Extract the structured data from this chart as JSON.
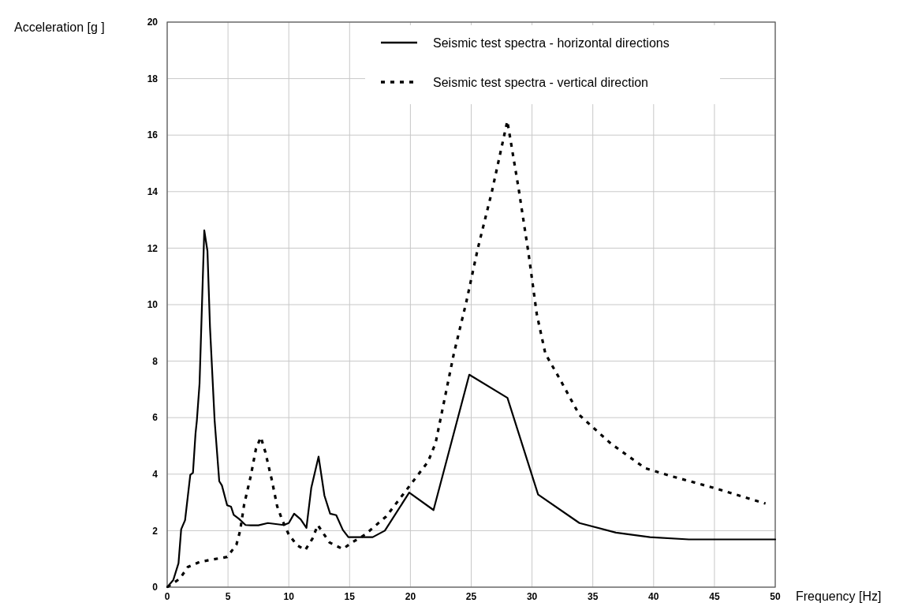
{
  "chart_data": {
    "type": "line",
    "xlabel": "Frequency [Hz]",
    "ylabel": "Acceleration [g ]",
    "xlim": [
      0,
      50
    ],
    "ylim": [
      0,
      20
    ],
    "xticks": [
      0,
      5,
      10,
      15,
      20,
      25,
      30,
      35,
      40,
      45,
      50
    ],
    "yticks": [
      0,
      2,
      4,
      6,
      8,
      10,
      12,
      14,
      16,
      18,
      20
    ],
    "grid": true,
    "legend": "top right",
    "marker": "none",
    "series": [
      {
        "name": "Seismic test spectra - horizontal directions",
        "color": "#000000",
        "line_style": "solid",
        "x": [
          0,
          0.5,
          0.93,
          1.15,
          1.47,
          1.9,
          2.12,
          2.33,
          2.44,
          2.66,
          3.05,
          3.31,
          3.52,
          3.9,
          4.28,
          4.5,
          4.93,
          5.25,
          5.47,
          5.9,
          6.44,
          6.87,
          7.5,
          8.28,
          9.58,
          10.0,
          10.44,
          10.98,
          11.45,
          11.85,
          12.45,
          12.93,
          13.4,
          13.9,
          14.44,
          14.9,
          16.9,
          17.9,
          19.9,
          21.9,
          24.84,
          27.98,
          30.5,
          33.9,
          36.9,
          39.7,
          42.9,
          50
        ],
        "values": [
          0,
          0.25,
          0.85,
          2.05,
          2.37,
          3.98,
          4.05,
          5.44,
          5.9,
          7.2,
          12.63,
          11.9,
          9.2,
          5.9,
          3.75,
          3.6,
          2.9,
          2.85,
          2.56,
          2.42,
          2.2,
          2.19,
          2.19,
          2.27,
          2.2,
          2.27,
          2.6,
          2.4,
          2.1,
          3.52,
          4.62,
          3.24,
          2.6,
          2.55,
          2.03,
          1.77,
          1.77,
          2.0,
          3.35,
          2.73,
          7.52,
          6.7,
          3.28,
          2.27,
          1.93,
          1.77,
          1.69,
          1.69
        ]
      },
      {
        "name": "Seismic test spectra - vertical direction",
        "color": "#000000",
        "line_style": "dotted",
        "x": [
          0,
          1.04,
          1.69,
          2.66,
          3.74,
          4.93,
          5.69,
          6.0,
          6.33,
          6.87,
          7.3,
          7.7,
          8.06,
          8.6,
          9.04,
          9.47,
          10.0,
          10.66,
          11.35,
          11.95,
          12.38,
          13.35,
          14.44,
          15.2,
          16.27,
          18.0,
          20.05,
          21.45,
          22.07,
          23.57,
          24.6,
          25.55,
          26.7,
          27.97,
          28.9,
          29.7,
          30.4,
          31.1,
          32.27,
          33.9,
          36.49,
          39.3,
          41.45,
          44.9,
          49.2
        ],
        "values": [
          0,
          0.3,
          0.71,
          0.89,
          0.98,
          1.07,
          1.5,
          2.0,
          2.93,
          3.93,
          4.9,
          5.31,
          4.8,
          3.8,
          2.87,
          2.36,
          1.86,
          1.49,
          1.31,
          1.72,
          2.2,
          1.58,
          1.35,
          1.58,
          1.86,
          2.5,
          3.65,
          4.44,
          5.1,
          8.26,
          10.1,
          12.0,
          14.0,
          16.5,
          14.1,
          11.85,
          9.64,
          8.26,
          7.38,
          6.09,
          5.08,
          4.21,
          3.93,
          3.52,
          2.96
        ]
      }
    ]
  }
}
